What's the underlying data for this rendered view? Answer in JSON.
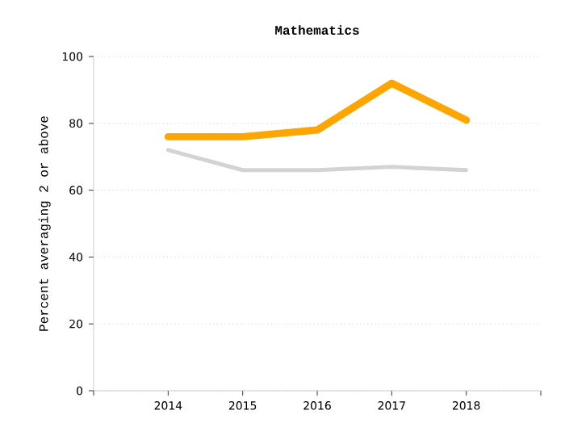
{
  "chart_data": {
    "type": "line",
    "title": "Mathematics",
    "ylabel": "Percent averaging 2 or above",
    "x": [
      2014,
      2015,
      2016,
      2017,
      2018
    ],
    "series": [
      {
        "color": "#ffa500",
        "values": [
          76,
          76,
          78,
          92,
          81
        ]
      },
      {
        "color": "#d3d3d3",
        "values": [
          72,
          66,
          66,
          67,
          66
        ]
      }
    ],
    "xlim": [
      2013,
      2019
    ],
    "xticks": [
      {
        "value": 2013,
        "label": null
      },
      2014,
      2015,
      2016,
      2017,
      2018,
      {
        "value": 2019,
        "label": null
      }
    ],
    "ylim": [
      0,
      100
    ],
    "yticks": [
      0,
      20,
      40,
      60,
      80,
      100
    ],
    "grid": "y",
    "marker": "none",
    "line_style": "solid"
  }
}
